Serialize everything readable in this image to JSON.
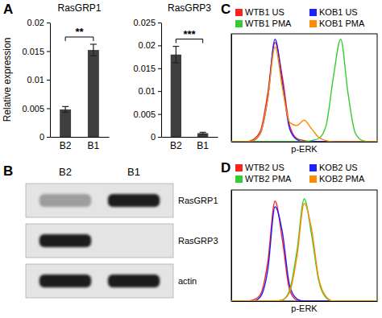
{
  "panel_labels": [
    "A",
    "B",
    "C",
    "D"
  ],
  "chart_data": [
    {
      "type": "bar",
      "title": "RasGRP1",
      "y_label": "Relative expression",
      "categories": [
        "B2",
        "B1"
      ],
      "values": [
        0.0048,
        0.0152
      ],
      "errors": [
        0.0005,
        0.001
      ],
      "color": "#3f3f3f",
      "ylim": [
        0,
        0.02
      ],
      "yticks": [
        0,
        0.005,
        0.01,
        0.015,
        0.02
      ],
      "annotations": [
        {
          "text": "**",
          "between": [
            "B2",
            "B1"
          ]
        }
      ]
    },
    {
      "type": "bar",
      "title": "RasGRP3",
      "categories": [
        "B2",
        "B1"
      ],
      "values": [
        0.018,
        0.0008
      ],
      "errors": [
        0.0018,
        0.0002
      ],
      "color": "#3f3f3f",
      "ylim": [
        0,
        0.025
      ],
      "yticks": [
        0,
        0.005,
        0.01,
        0.015,
        0.02,
        0.025
      ],
      "annotations": [
        {
          "text": "***",
          "between": [
            "B2",
            "B1"
          ]
        }
      ]
    },
    {
      "type": "line",
      "x_label": "p-ERK",
      "tick_labels": false,
      "legend": "top",
      "xlim": [
        0,
        100
      ],
      "ylim": [
        0,
        100
      ],
      "x": [
        0,
        5,
        10,
        15,
        20,
        25,
        30,
        35,
        40,
        45,
        50,
        55,
        60,
        65,
        70,
        75,
        80,
        85,
        90,
        95,
        100
      ],
      "series": [
        {
          "name": "WTB1 US",
          "color": "#ff2020",
          "values": [
            0,
            0,
            0,
            2,
            10,
            45,
            92,
            60,
            15,
            3,
            1,
            0,
            0,
            0,
            0,
            0,
            0,
            0,
            0,
            0,
            0
          ]
        },
        {
          "name": "KOB1 US",
          "color": "#2020ff",
          "values": [
            0,
            0,
            0,
            1,
            8,
            40,
            95,
            55,
            12,
            2,
            0,
            0,
            0,
            0,
            0,
            0,
            0,
            0,
            0,
            0,
            0
          ]
        },
        {
          "name": "WTB1 PMA",
          "color": "#33cc33",
          "values": [
            0,
            0,
            0,
            0,
            0,
            0,
            0,
            0,
            0,
            0,
            0,
            1,
            3,
            15,
            60,
            95,
            45,
            8,
            1,
            0,
            0
          ]
        },
        {
          "name": "KOB1 PMA",
          "color": "#ff8c00",
          "values": [
            0,
            0,
            0,
            1,
            8,
            40,
            88,
            50,
            18,
            15,
            20,
            12,
            4,
            1,
            0,
            0,
            0,
            0,
            0,
            0,
            0
          ]
        }
      ]
    },
    {
      "type": "line",
      "x_label": "p-ERK",
      "tick_labels": false,
      "legend": "top",
      "xlim": [
        0,
        100
      ],
      "ylim": [
        0,
        100
      ],
      "x": [
        0,
        5,
        10,
        15,
        20,
        25,
        30,
        35,
        40,
        45,
        50,
        55,
        60,
        65,
        70,
        75,
        80,
        85,
        90,
        95,
        100
      ],
      "series": [
        {
          "name": "WTB2 US",
          "color": "#ff2020",
          "values": [
            0,
            0,
            0,
            1,
            6,
            35,
            90,
            55,
            10,
            1,
            0,
            0,
            0,
            0,
            0,
            0,
            0,
            0,
            0,
            0,
            0
          ]
        },
        {
          "name": "KOB2 US",
          "color": "#2020ff",
          "values": [
            0,
            0,
            0,
            0,
            4,
            28,
            85,
            62,
            14,
            2,
            0,
            0,
            0,
            0,
            0,
            0,
            0,
            0,
            0,
            0,
            0
          ]
        },
        {
          "name": "WTB2 PMA",
          "color": "#33cc33",
          "values": [
            0,
            0,
            0,
            0,
            0,
            0,
            0,
            1,
            10,
            45,
            92,
            60,
            18,
            3,
            0,
            0,
            0,
            0,
            0,
            0,
            0
          ]
        },
        {
          "name": "KOB2 PMA",
          "color": "#ff8c00",
          "values": [
            0,
            0,
            0,
            0,
            0,
            0,
            0,
            1,
            8,
            40,
            88,
            65,
            20,
            4,
            0,
            0,
            0,
            0,
            0,
            0,
            0
          ]
        }
      ]
    }
  ],
  "blot": {
    "lanes": [
      "B2",
      "B1"
    ],
    "rows": [
      {
        "name": "RasGRP1",
        "intensity": [
          0.35,
          1
        ]
      },
      {
        "name": "RasGRP3",
        "intensity": [
          1,
          0
        ]
      },
      {
        "name": "actin",
        "intensity": [
          1,
          1
        ]
      }
    ]
  }
}
